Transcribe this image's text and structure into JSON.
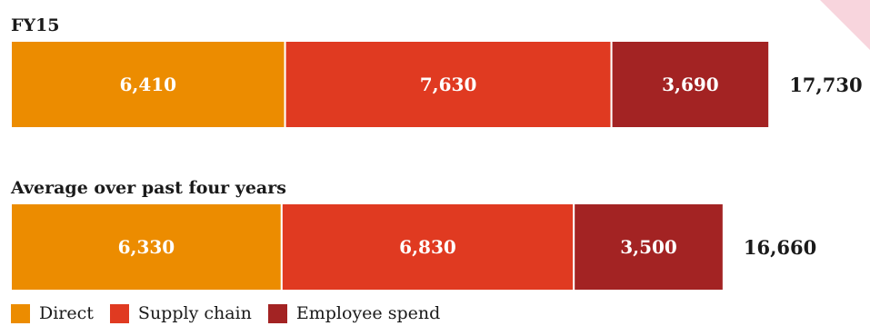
{
  "colors": {
    "direct": "#EC8C00",
    "supply_chain": "#E03A21",
    "employee_spend": "#A32323",
    "corner_accent": "#F8D5DD"
  },
  "chart_data": {
    "type": "bar",
    "orientation": "horizontal",
    "stacked": true,
    "groups": [
      {
        "title": "FY15",
        "series_values": [
          6410,
          7630,
          3690
        ],
        "segment_labels": [
          "6,410",
          "7,630",
          "3,690"
        ],
        "total_label": "17,730",
        "total": 17730
      },
      {
        "title": "Average over past four years",
        "series_values": [
          6330,
          6830,
          3500
        ],
        "segment_labels": [
          "6,330",
          "6,830",
          "3,500"
        ],
        "total_label": "16,660",
        "total": 16660
      }
    ],
    "series": [
      {
        "name": "Direct",
        "color": "#EC8C00"
      },
      {
        "name": "Supply chain",
        "color": "#E03A21"
      },
      {
        "name": "Employee spend",
        "color": "#A32323"
      }
    ],
    "legend_position": "bottom-left",
    "grid": false
  }
}
